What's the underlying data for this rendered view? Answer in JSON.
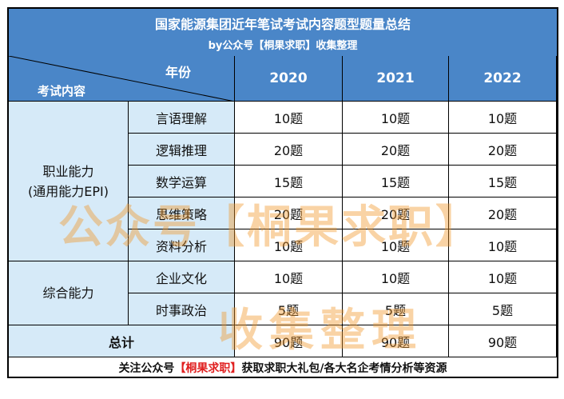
{
  "title": "国家能源集团近年笔试考试内容题型题量总结",
  "subtitle": "by公众号【桐果求职】收集整理",
  "header": {
    "year_label": "年份",
    "subject_label": "考试内容",
    "years": [
      "2020",
      "2021",
      "2022"
    ]
  },
  "categories": [
    {
      "name": "职业能力\n(通用能力EPI)",
      "rows": [
        {
          "item": "言语理解",
          "values": [
            "10题",
            "10题",
            "10题"
          ]
        },
        {
          "item": "逻辑推理",
          "values": [
            "20题",
            "20题",
            "20题"
          ]
        },
        {
          "item": "数学运算",
          "values": [
            "15题",
            "15题",
            "15题"
          ]
        },
        {
          "item": "思维策略",
          "values": [
            "20题",
            "20题",
            "20题"
          ]
        },
        {
          "item": "资料分析",
          "values": [
            "10题",
            "10题",
            "10题"
          ]
        }
      ]
    },
    {
      "name": "综合能力",
      "rows": [
        {
          "item": "企业文化",
          "values": [
            "10题",
            "10题",
            "10题"
          ]
        },
        {
          "item": "时事政治",
          "values": [
            "5题",
            "5题",
            "5题"
          ]
        }
      ]
    }
  ],
  "total": {
    "label": "总计",
    "values": [
      "90题",
      "90题",
      "90题"
    ]
  },
  "footer": {
    "prefix": "关注公众号",
    "highlight": "【桐果求职】",
    "suffix": "获取求职大礼包/各大名企考情分析等资源"
  },
  "watermark": {
    "line1": "公众号【桐果求职】",
    "line2": "收集整理"
  }
}
